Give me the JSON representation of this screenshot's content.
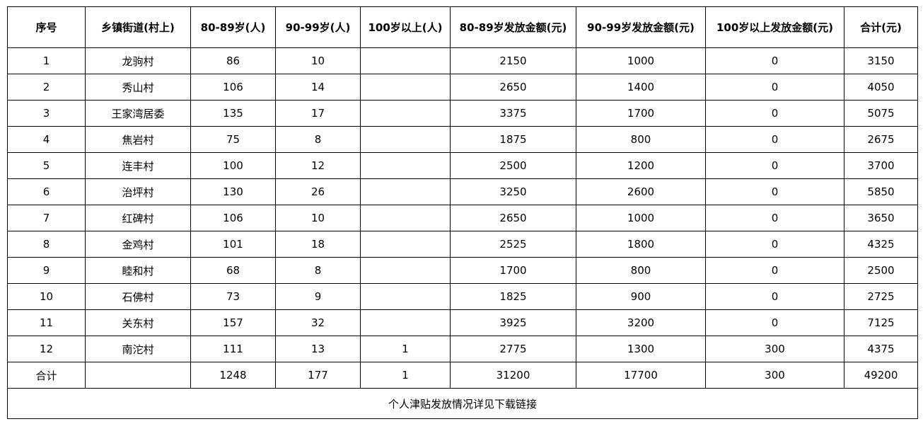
{
  "headers": [
    "序号",
    "乡镇街道(村上)",
    "80-89岁(人)",
    "90-99岁(人)",
    "100岁以上(人)",
    "80-89岁发放金额(元)",
    "90-99岁发放金额(元)",
    "100岁以上发放金额(元)",
    "合计(元)"
  ],
  "rows": [
    [
      "1",
      "龙驹村",
      "86",
      "10",
      "",
      "2150",
      "1000",
      "0",
      "3150"
    ],
    [
      "2",
      "秀山村",
      "106",
      "14",
      "",
      "2650",
      "1400",
      "0",
      "4050"
    ],
    [
      "3",
      "王家湾居委",
      "135",
      "17",
      "",
      "3375",
      "1700",
      "0",
      "5075"
    ],
    [
      "4",
      "焦岩村",
      "75",
      "8",
      "",
      "1875",
      "800",
      "0",
      "2675"
    ],
    [
      "5",
      "连丰村",
      "100",
      "12",
      "",
      "2500",
      "1200",
      "0",
      "3700"
    ],
    [
      "6",
      "治坪村",
      "130",
      "26",
      "",
      "3250",
      "2600",
      "0",
      "5850"
    ],
    [
      "7",
      "红碑村",
      "106",
      "10",
      "",
      "2650",
      "1000",
      "0",
      "3650"
    ],
    [
      "8",
      "金鸡村",
      "101",
      "18",
      "",
      "2525",
      "1800",
      "0",
      "4325"
    ],
    [
      "9",
      "睦和村",
      "68",
      "8",
      "",
      "1700",
      "800",
      "0",
      "2500"
    ],
    [
      "10",
      "石佛村",
      "73",
      "9",
      "",
      "1825",
      "900",
      "0",
      "2725"
    ],
    [
      "11",
      "关东村",
      "157",
      "32",
      "",
      "3925",
      "3200",
      "0",
      "7125"
    ],
    [
      "12",
      "南沱村",
      "111",
      "13",
      "1",
      "2775",
      "1300",
      "300",
      "4375"
    ],
    [
      "合计",
      "",
      "1248",
      "177",
      "1",
      "31200",
      "17700",
      "300",
      "49200"
    ]
  ],
  "footer": "个人津贴发放情况详见下载链接"
}
